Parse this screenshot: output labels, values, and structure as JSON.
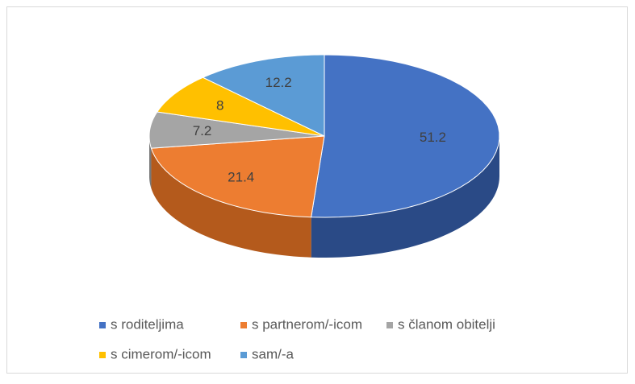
{
  "chart_data": {
    "type": "pie3d",
    "series": [
      {
        "name": "s roditeljima",
        "color": "#4472c4",
        "side": "#2a4a86",
        "values": [
          51.2
        ]
      },
      {
        "name": "s partnerom/-icom",
        "color": "#ed7d31",
        "side": "#b45a1c",
        "values": [
          21.4
        ]
      },
      {
        "name": "s članom obitelji",
        "color": "#a5a5a5",
        "side": "#777777",
        "values": [
          7.2
        ]
      },
      {
        "name": "s cimerom/-icom",
        "color": "#ffc000",
        "side": "#c09000",
        "values": [
          8
        ]
      },
      {
        "name": "sam/-a",
        "color": "#5b9bd5",
        "side": "#3b72a6",
        "values": [
          12.2
        ]
      }
    ],
    "legend": "bottom"
  }
}
